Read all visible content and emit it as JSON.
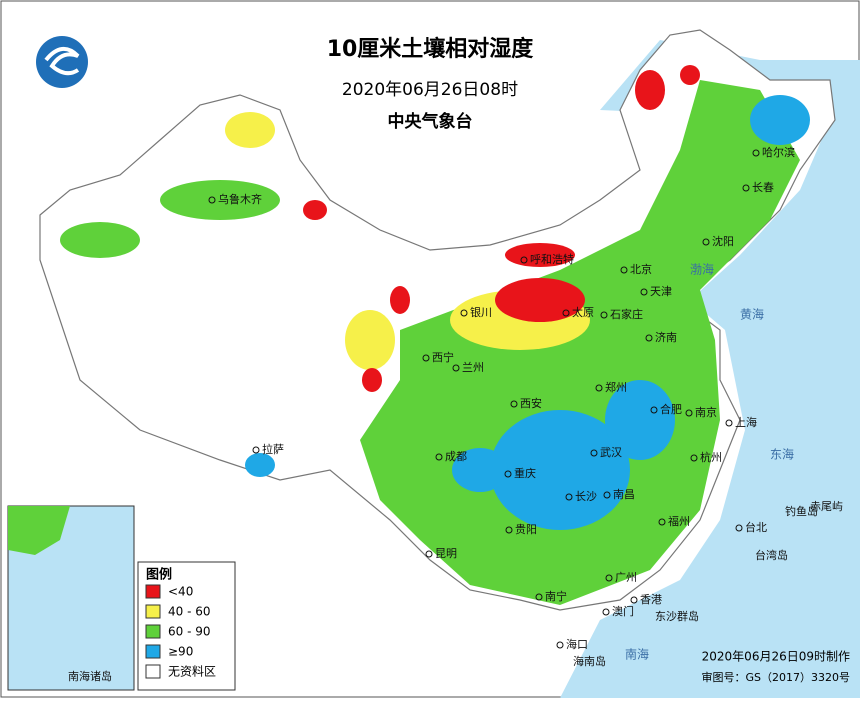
{
  "header": {
    "title": "10厘米土壤相对湿度",
    "subtitle": "2020年06月26日08时",
    "organization": "中央气象台"
  },
  "legend": {
    "title": "图例",
    "items": [
      {
        "label": "<40",
        "color": "#e8141a"
      },
      {
        "label": "40 - 60",
        "color": "#f6f04a"
      },
      {
        "label": "60 - 90",
        "color": "#5fd13a"
      },
      {
        "label": "≥90",
        "color": "#1fa8e6"
      },
      {
        "label": "无资料区",
        "color": "#ffffff"
      }
    ]
  },
  "cities": [
    "乌鲁木齐",
    "哈尔滨",
    "长春",
    "沈阳",
    "北京",
    "天津",
    "呼和浩特",
    "银川",
    "太原",
    "石家庄",
    "济南",
    "西宁",
    "兰州",
    "西安",
    "郑州",
    "合肥",
    "南京",
    "上海",
    "武汉",
    "杭州",
    "拉萨",
    "成都",
    "重庆",
    "长沙",
    "南昌",
    "福州",
    "台北",
    "贵阳",
    "昆明",
    "南宁",
    "广州",
    "香港",
    "澳门",
    "海口"
  ],
  "places": [
    "钓鱼岛",
    "赤尾屿",
    "台湾岛",
    "东沙群岛",
    "海南岛",
    "黄海",
    "东海",
    "南海",
    "渤海"
  ],
  "inset": {
    "title": "南海诸岛"
  },
  "footer": {
    "made": "2020年06月26日09时制作",
    "approval": "审图号：GS（2017）3320号"
  }
}
